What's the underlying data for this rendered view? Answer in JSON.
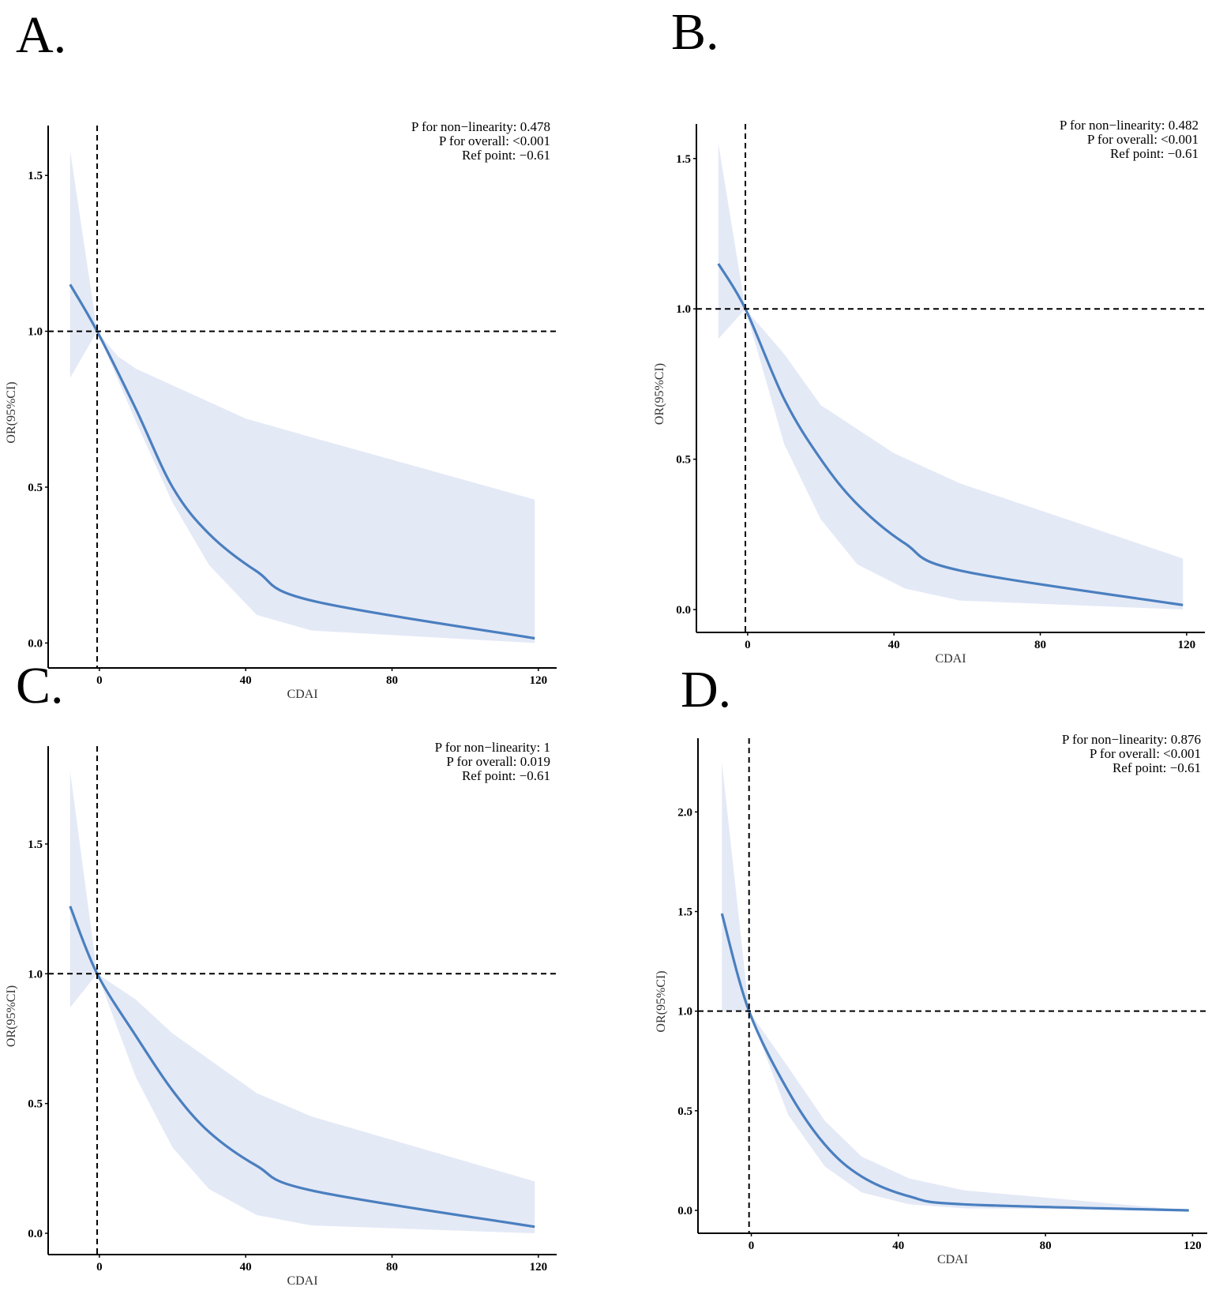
{
  "chart_data": [
    {
      "panel_label": "A.",
      "type": "line",
      "xlabel": "CDAI",
      "ylabel": "OR(95%CI)",
      "xlim": [
        -14,
        125
      ],
      "ylim": [
        -0.08,
        1.66
      ],
      "xticks": [
        0,
        40,
        80,
        120
      ],
      "yticks": [
        "0.0",
        "0.5",
        "1.0",
        "1.5"
      ],
      "ref_lines": {
        "x": -0.61,
        "y": 1.0
      },
      "annotations": [
        "P for non−linearity:  0.478",
        "P for overall:  <0.001",
        "Ref point:  −0.61"
      ],
      "series": [
        {
          "name": "OR",
          "x": [
            -8,
            -0.61,
            10,
            20,
            30,
            43,
            58,
            119
          ],
          "y": [
            1.15,
            1.0,
            0.75,
            0.5,
            0.35,
            0.23,
            0.136,
            0.015
          ]
        },
        {
          "name": "CI upper",
          "x": [
            -8,
            -0.61,
            5,
            10,
            40,
            58,
            119
          ],
          "y": [
            1.58,
            1.0,
            0.92,
            0.88,
            0.72,
            0.66,
            0.46
          ]
        },
        {
          "name": "CI lower",
          "x": [
            -8,
            -0.61,
            10,
            20,
            30,
            43,
            58,
            119
          ],
          "y": [
            0.85,
            1.0,
            0.71,
            0.45,
            0.25,
            0.09,
            0.04,
            0.0
          ]
        }
      ]
    },
    {
      "panel_label": "B.",
      "type": "line",
      "xlabel": "CDAI",
      "ylabel": "OR(95%CI)",
      "xlim": [
        -14,
        125
      ],
      "ylim": [
        -0.076,
        1.615
      ],
      "xticks": [
        0,
        40,
        80,
        120
      ],
      "yticks": [
        "0.0",
        "0.5",
        "1.0",
        "1.5"
      ],
      "ref_lines": {
        "x": -0.61,
        "y": 1.0
      },
      "annotations": [
        "P for non−linearity:  0.482",
        "P for overall:  <0.001",
        "Ref point:  −0.61"
      ],
      "series": [
        {
          "name": "OR",
          "x": [
            -8,
            -0.61,
            10,
            20,
            30,
            43,
            58,
            119
          ],
          "y": [
            1.15,
            1.0,
            0.7,
            0.5,
            0.35,
            0.22,
            0.13,
            0.015
          ]
        },
        {
          "name": "CI upper",
          "x": [
            -8,
            -0.61,
            10,
            20,
            40,
            58,
            119
          ],
          "y": [
            1.55,
            1.0,
            0.85,
            0.68,
            0.52,
            0.42,
            0.17
          ]
        },
        {
          "name": "CI lower",
          "x": [
            -8,
            -0.61,
            10,
            20,
            30,
            43,
            58,
            119
          ],
          "y": [
            0.9,
            1.0,
            0.55,
            0.3,
            0.15,
            0.07,
            0.03,
            0.0
          ]
        }
      ]
    },
    {
      "panel_label": "C.",
      "type": "line",
      "xlabel": "CDAI",
      "ylabel": "OR(95%CI)",
      "xlim": [
        -14,
        125
      ],
      "ylim": [
        -0.082,
        1.877
      ],
      "xticks": [
        0,
        40,
        80,
        120
      ],
      "yticks": [
        "0.0",
        "0.5",
        "1.0",
        "1.5"
      ],
      "ref_lines": {
        "x": -0.61,
        "y": 1.0
      },
      "annotations": [
        "P for non−linearity:  1",
        "P for overall:  0.019",
        "Ref point:  −0.61"
      ],
      "series": [
        {
          "name": "OR",
          "x": [
            -8,
            -0.61,
            10,
            20,
            30,
            43,
            58,
            119
          ],
          "y": [
            1.26,
            1.0,
            0.76,
            0.55,
            0.39,
            0.26,
            0.165,
            0.025
          ]
        },
        {
          "name": "CI upper",
          "x": [
            -8,
            -0.61,
            10,
            20,
            43,
            58,
            119
          ],
          "y": [
            1.78,
            1.0,
            0.9,
            0.77,
            0.54,
            0.45,
            0.2
          ]
        },
        {
          "name": "CI lower",
          "x": [
            -8,
            -0.61,
            10,
            20,
            30,
            43,
            58,
            119
          ],
          "y": [
            0.87,
            1.0,
            0.6,
            0.33,
            0.17,
            0.07,
            0.03,
            0.0
          ]
        }
      ]
    },
    {
      "panel_label": "D.",
      "type": "line",
      "xlabel": "CDAI",
      "ylabel": "OR(95%CI)",
      "xlim": [
        -14.5,
        124
      ],
      "ylim": [
        -0.115,
        2.37
      ],
      "xticks": [
        0,
        40,
        80,
        120
      ],
      "yticks": [
        "0.0",
        "0.5",
        "1.0",
        "1.5",
        "2.0"
      ],
      "ref_lines": {
        "x": -0.61,
        "y": 1.0
      },
      "annotations": [
        "P for non−linearity:  0.876",
        "P for overall:  <0.001",
        "Ref point:  −0.61"
      ],
      "series": [
        {
          "name": "OR",
          "x": [
            -8,
            -0.61,
            10,
            20,
            30,
            43,
            58,
            119
          ],
          "y": [
            1.49,
            1.0,
            0.6,
            0.33,
            0.17,
            0.07,
            0.03,
            0.0
          ]
        },
        {
          "name": "CI upper",
          "x": [
            -8,
            -0.61,
            10,
            20,
            30,
            43,
            58,
            119
          ],
          "y": [
            2.25,
            1.0,
            0.72,
            0.45,
            0.27,
            0.16,
            0.1,
            0.0
          ]
        },
        {
          "name": "CI lower",
          "x": [
            -8,
            -0.61,
            10,
            20,
            30,
            43,
            58,
            119
          ],
          "y": [
            1.0,
            1.0,
            0.48,
            0.22,
            0.09,
            0.03,
            0.01,
            0.0
          ]
        }
      ]
    }
  ],
  "colors": {
    "line": "#4a7fbf",
    "ribbon": "#e4e9f6",
    "axis": "#000000"
  }
}
